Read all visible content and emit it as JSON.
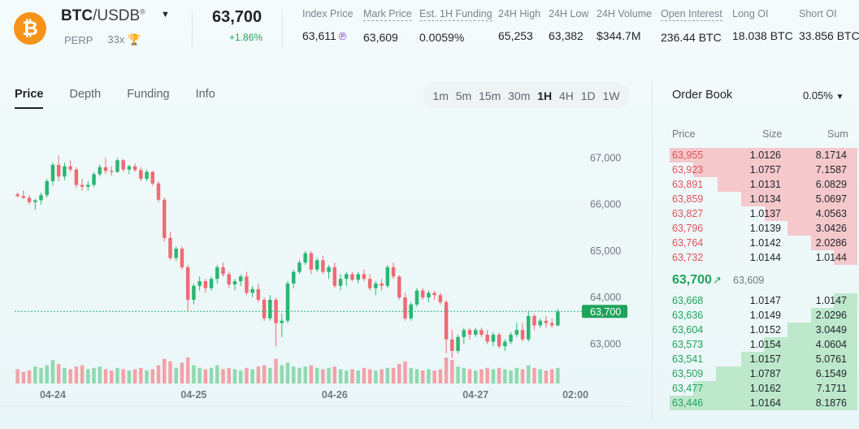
{
  "header": {
    "coin_symbol": "₿",
    "base": "BTC",
    "quote": "/USDB",
    "registered": "®",
    "type": "PERP",
    "leverage": "33x",
    "trophy": "🏆",
    "last_price": "63,700",
    "change": "+1.86%",
    "stats": [
      {
        "label": "Index Price",
        "value": "63,611",
        "dashed": false
      },
      {
        "label": "Mark Price",
        "value": "63,609",
        "dashed": true
      },
      {
        "label": "Est. 1H Funding",
        "value": "0.0059%",
        "dashed": true
      },
      {
        "label": "24H High",
        "value": "65,253",
        "dashed": false
      },
      {
        "label": "24H Low",
        "value": "63,382",
        "dashed": false
      },
      {
        "label": "24H Volume",
        "value": "$344.7M",
        "dashed": false
      },
      {
        "label": "Open Interest",
        "value": "236.44 BTC",
        "dashed": true
      },
      {
        "label": "Long OI",
        "value": "18.038 BTC",
        "dashed": false
      },
      {
        "label": "Short OI",
        "value": "33.856 BTC",
        "dashed": false
      }
    ]
  },
  "tabs": [
    "Price",
    "Depth",
    "Funding",
    "Info"
  ],
  "intervals": [
    "1m",
    "5m",
    "15m",
    "30m",
    "1H",
    "4H",
    "1D",
    "1W"
  ],
  "active_interval": "1H",
  "order_book": {
    "title": "Order Book",
    "precision": "0.05%",
    "columns": [
      "Price",
      "Size",
      "Sum"
    ],
    "asks": [
      {
        "price": "63,955",
        "size": "1.0126",
        "sum": "8.1714"
      },
      {
        "price": "63,923",
        "size": "1.0757",
        "sum": "7.1587"
      },
      {
        "price": "63,891",
        "size": "1.0131",
        "sum": "6.0829"
      },
      {
        "price": "63,859",
        "size": "1.0134",
        "sum": "5.0697"
      },
      {
        "price": "63,827",
        "size": "1.0137",
        "sum": "4.0563"
      },
      {
        "price": "63,796",
        "size": "1.0139",
        "sum": "3.0426"
      },
      {
        "price": "63,764",
        "size": "1.0142",
        "sum": "2.0286"
      },
      {
        "price": "63,732",
        "size": "1.0144",
        "sum": "1.0144"
      }
    ],
    "mid_price": "63,700",
    "mid_arrow": "↗",
    "mark": "63,609",
    "bids": [
      {
        "price": "63,668",
        "size": "1.0147",
        "sum": "1.0147"
      },
      {
        "price": "63,636",
        "size": "1.0149",
        "sum": "2.0296"
      },
      {
        "price": "63,604",
        "size": "1.0152",
        "sum": "3.0449"
      },
      {
        "price": "63,573",
        "size": "1.0154",
        "sum": "4.0604"
      },
      {
        "price": "63,541",
        "size": "1.0157",
        "sum": "5.0761"
      },
      {
        "price": "63,509",
        "size": "1.0787",
        "sum": "6.1549"
      },
      {
        "price": "63,477",
        "size": "1.0162",
        "sum": "7.1711"
      },
      {
        "price": "63,446",
        "size": "1.0164",
        "sum": "8.1876"
      }
    ]
  },
  "chart_data": {
    "type": "candlestick",
    "y_ticks": [
      "67,000",
      "66,000",
      "65,000",
      "64,000",
      "63,000"
    ],
    "y_tick_values": [
      67000,
      66000,
      65000,
      64000,
      63000
    ],
    "x_ticks": [
      "04-24",
      "04-25",
      "04-26",
      "04-27",
      "02:00"
    ],
    "x_tick_candle_index": [
      6,
      30,
      54,
      78,
      95
    ],
    "ylim": [
      62500,
      67600
    ],
    "current_price": 63700,
    "current_label": "63,700",
    "colors": {
      "up": "#2bb673",
      "down": "#ef6b73",
      "volume_up": "#8fd9b0",
      "volume_down": "#f2a2a7"
    },
    "candles": [
      [
        66220,
        66260,
        66150,
        66180
      ],
      [
        66180,
        66300,
        66120,
        66140
      ],
      [
        66140,
        66200,
        66000,
        66050
      ],
      [
        66050,
        66120,
        65880,
        66090
      ],
      [
        66090,
        66250,
        66000,
        66200
      ],
      [
        66200,
        66550,
        66150,
        66500
      ],
      [
        66500,
        66900,
        66400,
        66850
      ],
      [
        66850,
        67050,
        66500,
        66600
      ],
      [
        66600,
        66900,
        66520,
        66820
      ],
      [
        66820,
        66950,
        66700,
        66750
      ],
      [
        66750,
        66800,
        66350,
        66420
      ],
      [
        66420,
        66550,
        66300,
        66380
      ],
      [
        66380,
        66500,
        66300,
        66420
      ],
      [
        66420,
        66700,
        66380,
        66650
      ],
      [
        66650,
        66860,
        66600,
        66800
      ],
      [
        66800,
        67000,
        66650,
        66720
      ],
      [
        66720,
        66820,
        66620,
        66700
      ],
      [
        66700,
        67000,
        66680,
        66950
      ],
      [
        66950,
        66980,
        66700,
        66750
      ],
      [
        66750,
        66850,
        66650,
        66820
      ],
      [
        66820,
        66880,
        66700,
        66740
      ],
      [
        66740,
        66800,
        66500,
        66550
      ],
      [
        66550,
        66750,
        66500,
        66700
      ],
      [
        66700,
        66720,
        66400,
        66450
      ],
      [
        66450,
        66500,
        66050,
        66100
      ],
      [
        66100,
        66150,
        65200,
        65280
      ],
      [
        65280,
        65400,
        64800,
        64850
      ],
      [
        64850,
        65100,
        64780,
        65050
      ],
      [
        65050,
        65100,
        64600,
        64650
      ],
      [
        64650,
        64700,
        63700,
        63950
      ],
      [
        63950,
        64300,
        63850,
        64250
      ],
      [
        64250,
        64450,
        64150,
        64350
      ],
      [
        64350,
        64400,
        64100,
        64200
      ],
      [
        64200,
        64450,
        64150,
        64400
      ],
      [
        64400,
        64700,
        64300,
        64650
      ],
      [
        64650,
        64750,
        64450,
        64500
      ],
      [
        64500,
        64550,
        64200,
        64280
      ],
      [
        64280,
        64400,
        64150,
        64350
      ],
      [
        64350,
        64500,
        64250,
        64450
      ],
      [
        64450,
        64550,
        64050,
        64100
      ],
      [
        64100,
        64250,
        64000,
        64180
      ],
      [
        64180,
        64300,
        63900,
        63950
      ],
      [
        63950,
        64000,
        63500,
        63550
      ],
      [
        63550,
        64050,
        63500,
        63950
      ],
      [
        63950,
        64000,
        62950,
        63450
      ],
      [
        63450,
        63650,
        63150,
        63500
      ],
      [
        63500,
        64350,
        63450,
        64300
      ],
      [
        64300,
        64600,
        64200,
        64550
      ],
      [
        64550,
        64800,
        64500,
        64750
      ],
      [
        64750,
        65000,
        64700,
        64950
      ],
      [
        64950,
        65000,
        64500,
        64600
      ],
      [
        64600,
        64850,
        64550,
        64800
      ],
      [
        64800,
        64900,
        64500,
        64550
      ],
      [
        64550,
        64700,
        64400,
        64650
      ],
      [
        64650,
        64750,
        64200,
        64250
      ],
      [
        64250,
        64500,
        64150,
        64400
      ],
      [
        64400,
        64550,
        64250,
        64500
      ],
      [
        64500,
        64550,
        64350,
        64380
      ],
      [
        64380,
        64550,
        64300,
        64500
      ],
      [
        64500,
        64600,
        64350,
        64400
      ],
      [
        64400,
        64500,
        64150,
        64200
      ],
      [
        64200,
        64350,
        64050,
        64300
      ],
      [
        64300,
        64400,
        64150,
        64250
      ],
      [
        64250,
        64700,
        64200,
        64650
      ],
      [
        64650,
        64750,
        64400,
        64450
      ],
      [
        64450,
        64480,
        63950,
        64000
      ],
      [
        64000,
        64100,
        63500,
        63550
      ],
      [
        63550,
        63900,
        63500,
        63850
      ],
      [
        63850,
        64200,
        63800,
        64150
      ],
      [
        64150,
        64200,
        63950,
        64000
      ],
      [
        64000,
        64150,
        63900,
        64100
      ],
      [
        64100,
        64150,
        63950,
        64050
      ],
      [
        64050,
        64100,
        63850,
        63900
      ],
      [
        63900,
        63950,
        62800,
        63100
      ],
      [
        63100,
        63300,
        62700,
        62850
      ],
      [
        62850,
        63200,
        62800,
        63150
      ],
      [
        63150,
        63350,
        63000,
        63300
      ],
      [
        63300,
        63350,
        63100,
        63200
      ],
      [
        63200,
        63350,
        63150,
        63300
      ],
      [
        63300,
        63350,
        63150,
        63200
      ],
      [
        63200,
        63300,
        63000,
        63050
      ],
      [
        63050,
        63250,
        62950,
        63200
      ],
      [
        63200,
        63250,
        62900,
        62950
      ],
      [
        62950,
        63100,
        62850,
        63050
      ],
      [
        63050,
        63250,
        63000,
        63200
      ],
      [
        63200,
        63450,
        63150,
        63300
      ],
      [
        63300,
        63450,
        63050,
        63100
      ],
      [
        63100,
        63700,
        63050,
        63600
      ],
      [
        63600,
        63650,
        63300,
        63400
      ],
      [
        63400,
        63550,
        63350,
        63500
      ],
      [
        63500,
        63600,
        63350,
        63450
      ],
      [
        63450,
        63550,
        63350,
        63400
      ],
      [
        63400,
        63750,
        63380,
        63700
      ]
    ],
    "volumes": [
      0.55,
      0.45,
      0.5,
      0.65,
      0.6,
      0.7,
      0.9,
      0.75,
      0.6,
      0.55,
      0.65,
      0.7,
      0.55,
      0.6,
      0.65,
      0.55,
      0.5,
      0.6,
      0.55,
      0.5,
      0.55,
      0.6,
      0.5,
      0.55,
      0.7,
      0.95,
      0.85,
      0.6,
      0.8,
      1.0,
      0.7,
      0.6,
      0.55,
      0.6,
      0.7,
      0.55,
      0.6,
      0.55,
      0.5,
      0.6,
      0.55,
      0.65,
      0.7,
      0.6,
      0.95,
      0.7,
      0.8,
      0.65,
      0.6,
      0.65,
      0.7,
      0.6,
      0.55,
      0.6,
      0.65,
      0.55,
      0.5,
      0.55,
      0.5,
      0.6,
      0.55,
      0.5,
      0.55,
      0.6,
      0.6,
      0.75,
      0.85,
      0.6,
      0.55,
      0.5,
      0.55,
      0.5,
      0.55,
      1.0,
      0.9,
      0.65,
      0.6,
      0.55,
      0.5,
      0.55,
      0.6,
      0.55,
      0.6,
      0.55,
      0.5,
      0.6,
      0.55,
      0.7,
      0.6,
      0.55,
      0.5,
      0.55,
      0.6
    ]
  }
}
